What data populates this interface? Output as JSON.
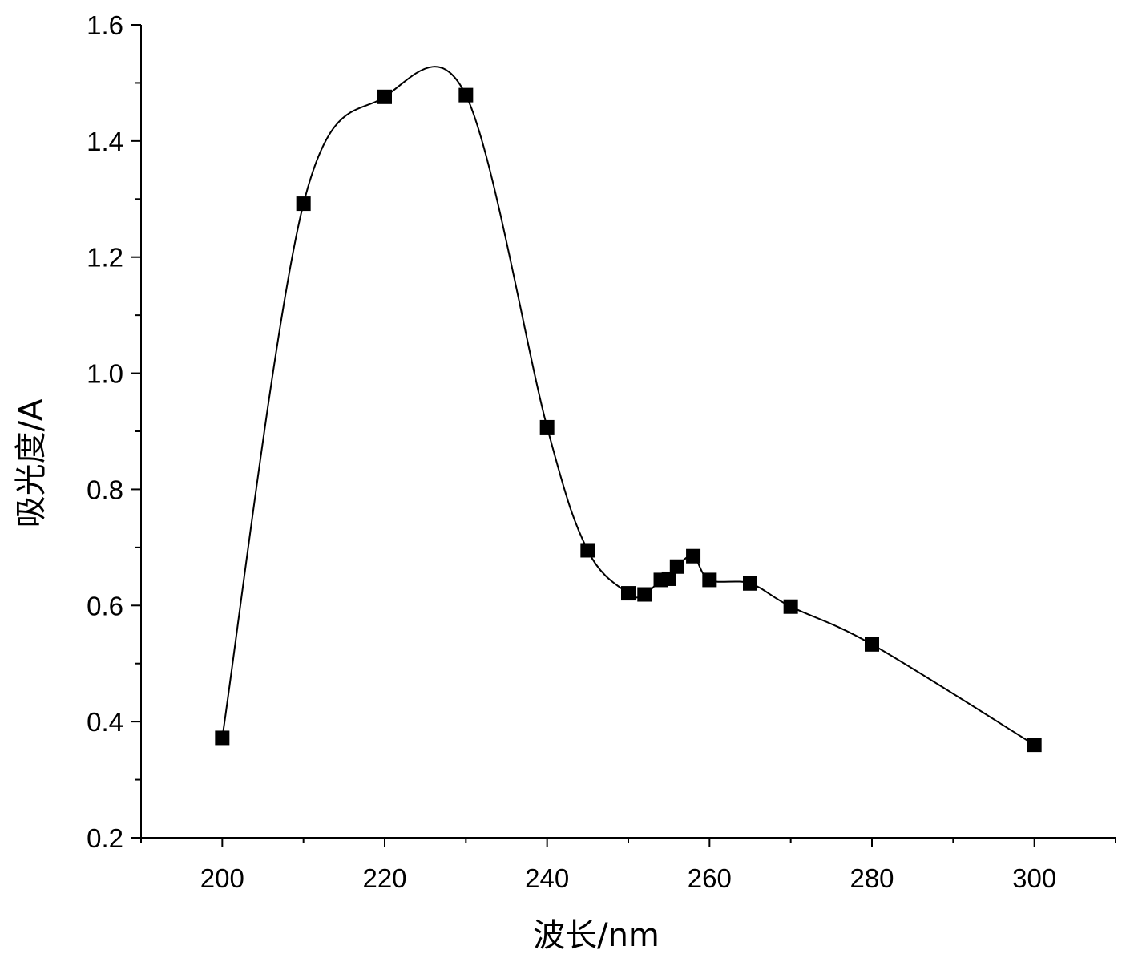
{
  "chart_data": {
    "type": "scatter",
    "title": "",
    "xlabel": "波长/nm",
    "ylabel": "吸光度/A",
    "xlim": [
      190,
      310
    ],
    "ylim": [
      0.2,
      1.6
    ],
    "x_ticks": [
      200,
      220,
      240,
      260,
      280,
      300
    ],
    "x_minor_step": 10,
    "y_ticks": [
      0.2,
      0.4,
      0.6,
      0.8,
      1.0,
      1.2,
      1.4,
      1.6
    ],
    "y_tick_labels": [
      "0.2",
      "0.4",
      "0.6",
      "0.8",
      "1.0",
      "1.2",
      "1.4",
      "1.6"
    ],
    "y_minor_step": 0.1,
    "x_tick_labels": [
      "200",
      "220",
      "240",
      "260",
      "280",
      "300"
    ],
    "grid": false,
    "legend": "none",
    "marker": "filled-square",
    "line": "smooth spline through points",
    "color": "#000000",
    "series": [
      {
        "x": [
          200,
          210,
          220,
          230,
          240,
          245,
          250,
          252,
          254,
          255,
          256,
          258,
          260,
          265,
          270,
          280,
          300
        ],
        "y": [
          0.372,
          1.292,
          1.476,
          1.479,
          0.907,
          0.695,
          0.621,
          0.619,
          0.644,
          0.646,
          0.667,
          0.685,
          0.644,
          0.638,
          0.598,
          0.533,
          0.36
        ]
      }
    ]
  }
}
